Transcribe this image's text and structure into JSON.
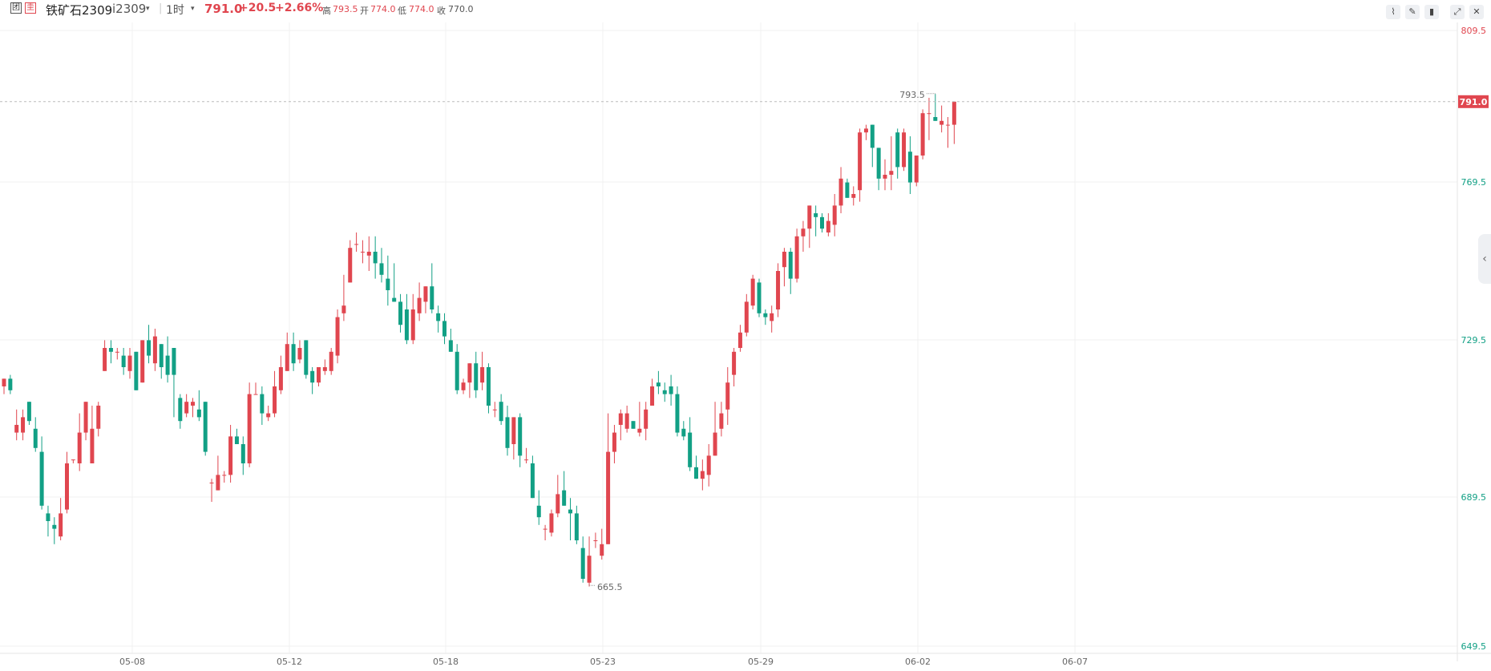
{
  "header": {
    "icon_left": "团",
    "icon_right": "圭",
    "symbol": "铁矿石2309",
    "code": "i2309",
    "code_caret": "▾",
    "period": "1时",
    "period_caret": "▾",
    "last_price": "791.0",
    "change": "+20.5",
    "change_pct": "+2.66%",
    "high_label": "高",
    "high_value": "793.5",
    "open_label": "开",
    "open_value": "774.0",
    "low_label": "低",
    "low_value": "774.0",
    "close_label": "收",
    "close_value": "770.0"
  },
  "toolbar": {
    "icons": [
      "line-chart-icon",
      "pen-icon",
      "candlestick-icon",
      "pin-icon",
      "close-icon"
    ]
  },
  "colors": {
    "up": "#e0464f",
    "down": "#12a085",
    "grid": "#f0f0f0",
    "axis_text": "#666666"
  },
  "chart_data": {
    "type": "candlestick",
    "symbol": "铁矿石2309",
    "period": "1时",
    "x_tick_labels": [
      "05-08",
      "05-12",
      "05-18",
      "05-23",
      "05-29",
      "06-02",
      "06-07"
    ],
    "y_ticks": [
      "809.5",
      "769.5",
      "729.5",
      "689.5",
      "649.5"
    ],
    "ylim": [
      649.5,
      809.5
    ],
    "current_price": "791.0",
    "high_annotation": "793.5",
    "low_annotation": "665.5",
    "grid": true,
    "candles": [
      [
        717,
        719,
        715,
        719
      ],
      [
        719,
        716,
        715,
        720
      ],
      [
        705,
        707,
        703,
        711
      ],
      [
        705,
        709,
        703,
        711
      ],
      [
        713,
        708,
        707,
        713
      ],
      [
        706,
        701,
        700,
        709
      ],
      [
        700,
        686,
        685,
        704
      ],
      [
        684,
        682,
        678,
        686
      ],
      [
        681,
        680,
        676,
        683
      ],
      [
        678,
        684,
        677,
        688
      ],
      [
        685,
        697,
        684,
        700
      ],
      [
        698,
        698,
        697,
        698
      ],
      [
        697,
        705,
        695,
        710
      ],
      [
        705,
        713,
        703,
        713
      ],
      [
        697,
        706,
        697,
        712
      ],
      [
        706,
        712,
        704,
        713
      ],
      [
        721,
        727,
        721,
        729
      ],
      [
        727,
        726,
        723,
        729
      ],
      [
        726,
        726,
        724,
        727
      ],
      [
        725,
        722,
        720,
        727
      ],
      [
        721,
        725,
        719,
        727
      ],
      [
        726,
        716,
        716,
        726
      ],
      [
        718,
        729,
        718,
        729
      ],
      [
        729,
        725,
        723,
        733
      ],
      [
        723,
        730,
        721,
        732
      ],
      [
        728,
        722,
        719,
        728
      ],
      [
        725,
        720,
        718,
        730
      ],
      [
        727,
        720,
        709,
        727
      ],
      [
        714,
        708,
        706,
        715
      ],
      [
        710,
        713,
        709,
        715
      ],
      [
        712,
        713,
        709,
        714
      ],
      [
        711,
        709,
        708,
        716
      ],
      [
        713,
        700,
        699,
        713
      ],
      [
        692,
        692,
        687,
        693
      ],
      [
        690,
        694,
        690,
        699
      ],
      [
        694,
        694,
        692,
        695
      ],
      [
        694,
        704,
        692,
        707
      ],
      [
        704,
        702,
        702,
        706
      ],
      [
        702,
        697,
        694,
        704
      ],
      [
        697,
        715,
        696,
        718
      ],
      [
        715,
        715,
        715,
        718
      ],
      [
        715,
        710,
        707,
        717
      ],
      [
        709,
        710,
        708,
        712
      ],
      [
        710,
        717,
        709,
        721
      ],
      [
        716,
        722,
        715,
        725
      ],
      [
        721,
        728,
        721,
        731
      ],
      [
        728,
        723,
        721,
        731
      ],
      [
        724,
        727,
        723,
        729
      ],
      [
        729,
        720,
        719,
        729
      ],
      [
        721,
        718,
        715,
        722
      ],
      [
        718,
        722,
        717,
        722
      ],
      [
        721,
        722,
        720,
        724
      ],
      [
        721,
        726,
        720,
        727
      ],
      [
        725,
        735,
        723,
        737
      ],
      [
        736,
        738,
        734,
        746
      ],
      [
        744,
        753,
        744,
        755
      ],
      [
        754,
        754,
        752,
        757
      ],
      [
        752,
        752,
        749,
        755
      ],
      [
        751,
        752,
        747,
        756
      ],
      [
        752,
        749,
        745,
        756
      ],
      [
        749,
        746,
        744,
        753
      ],
      [
        745,
        742,
        738,
        751
      ],
      [
        740,
        739,
        739,
        749
      ],
      [
        739,
        733,
        731,
        741
      ],
      [
        737,
        729,
        728,
        741
      ],
      [
        729,
        737,
        728,
        741
      ],
      [
        736,
        740,
        734,
        744
      ],
      [
        739,
        743,
        736,
        743
      ],
      [
        743,
        737,
        736,
        749
      ],
      [
        736,
        734,
        731,
        738
      ],
      [
        734,
        730,
        728,
        736
      ],
      [
        729,
        726,
        726,
        732
      ],
      [
        726,
        716,
        715,
        728
      ],
      [
        716,
        718,
        715,
        719
      ],
      [
        718,
        723,
        714,
        723
      ],
      [
        723,
        716,
        714,
        726
      ],
      [
        718,
        722,
        716,
        726
      ],
      [
        722,
        712,
        710,
        723
      ],
      [
        711,
        711,
        709,
        713
      ],
      [
        713,
        708,
        707,
        715
      ],
      [
        709,
        701,
        699,
        712
      ],
      [
        702,
        709,
        698,
        709
      ],
      [
        709,
        699,
        696,
        710
      ],
      [
        698,
        698,
        697,
        701
      ],
      [
        697,
        688,
        688,
        699
      ],
      [
        686,
        683,
        681,
        690
      ],
      [
        680,
        680,
        677,
        681
      ],
      [
        679,
        684,
        678,
        685
      ],
      [
        684,
        689,
        683,
        694
      ],
      [
        690,
        686,
        686,
        695
      ],
      [
        685,
        684,
        677,
        688
      ],
      [
        684,
        677,
        676,
        686
      ],
      [
        675,
        667,
        666,
        678
      ],
      [
        666,
        673,
        665,
        678
      ],
      [
        677,
        677,
        675,
        679
      ],
      [
        673,
        676,
        672,
        680
      ],
      [
        676,
        700,
        676,
        710
      ],
      [
        700,
        705,
        697,
        707
      ],
      [
        707,
        710,
        703,
        711
      ],
      [
        706,
        710,
        705,
        712
      ],
      [
        708,
        706,
        706,
        708
      ],
      [
        705,
        706,
        704,
        713
      ],
      [
        706,
        711,
        703,
        713
      ],
      [
        712,
        717,
        712,
        719
      ],
      [
        718,
        717,
        715,
        721
      ],
      [
        716,
        715,
        713,
        718
      ],
      [
        717,
        715,
        712,
        720
      ],
      [
        715,
        705,
        704,
        717
      ],
      [
        706,
        704,
        703,
        708
      ],
      [
        705,
        696,
        695,
        709
      ],
      [
        696,
        693,
        693,
        699
      ],
      [
        693,
        695,
        690,
        698
      ],
      [
        694,
        699,
        691,
        702
      ],
      [
        699,
        705,
        699,
        713
      ],
      [
        706,
        710,
        704,
        713
      ],
      [
        711,
        718,
        707,
        722
      ],
      [
        720,
        726,
        717,
        727
      ],
      [
        727,
        731,
        726,
        733
      ],
      [
        731,
        739,
        730,
        741
      ],
      [
        738,
        745,
        737,
        746
      ],
      [
        744,
        736,
        735,
        745
      ],
      [
        736,
        735,
        733,
        737
      ],
      [
        734,
        736,
        731,
        738
      ],
      [
        737,
        747,
        735,
        749
      ],
      [
        748,
        752,
        743,
        753
      ],
      [
        752,
        745,
        741,
        753
      ],
      [
        745,
        756,
        744,
        758
      ],
      [
        756,
        758,
        752,
        760
      ],
      [
        758,
        764,
        753,
        764
      ],
      [
        762,
        761,
        756,
        764
      ],
      [
        761,
        758,
        757,
        762
      ],
      [
        757,
        760,
        756,
        762
      ],
      [
        759,
        764,
        756,
        767
      ],
      [
        764,
        771,
        762,
        774
      ],
      [
        770,
        766,
        766,
        771
      ],
      [
        766,
        767,
        764,
        769
      ],
      [
        768,
        783,
        765,
        784
      ],
      [
        783,
        784,
        781,
        785
      ],
      [
        785,
        779,
        774,
        785
      ],
      [
        779,
        771,
        768,
        779
      ],
      [
        771,
        772,
        768,
        776
      ],
      [
        772,
        773,
        768,
        782
      ],
      [
        783,
        774,
        771,
        784
      ],
      [
        774,
        783,
        773,
        784
      ],
      [
        778,
        770,
        767,
        782
      ],
      [
        770,
        777,
        769,
        777
      ],
      [
        777,
        788,
        776,
        789
      ],
      [
        788,
        788,
        781,
        792
      ],
      [
        787,
        786,
        786,
        793
      ],
      [
        785,
        786,
        783,
        790
      ],
      [
        785,
        785,
        779,
        787
      ],
      [
        785,
        791,
        780,
        791
      ]
    ]
  }
}
